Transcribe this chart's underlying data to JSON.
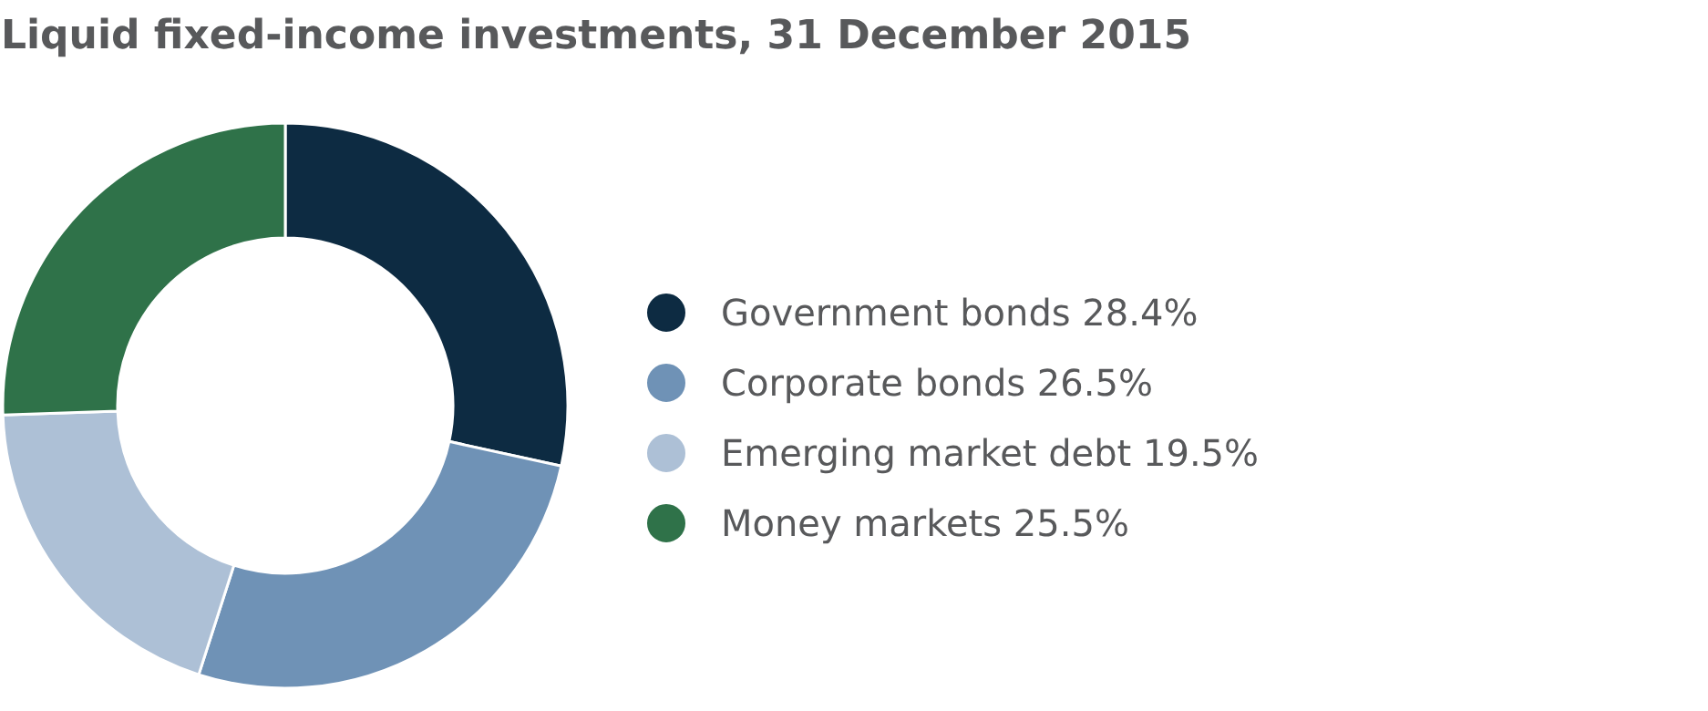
{
  "chart_data": {
    "type": "donut",
    "title": "Liquid fixed-income investments, 31 December 2015",
    "categories": [
      "Government bonds",
      "Corporate bonds",
      "Emerging market debt",
      "Money markets"
    ],
    "values": [
      28.4,
      26.5,
      19.5,
      25.5
    ],
    "value_labels": [
      "28.4%",
      "26.5%",
      "19.5%",
      "25.5%"
    ],
    "colors": [
      "#0d2b42",
      "#6f92b6",
      "#adc0d6",
      "#2f7249"
    ],
    "legend": "right"
  }
}
